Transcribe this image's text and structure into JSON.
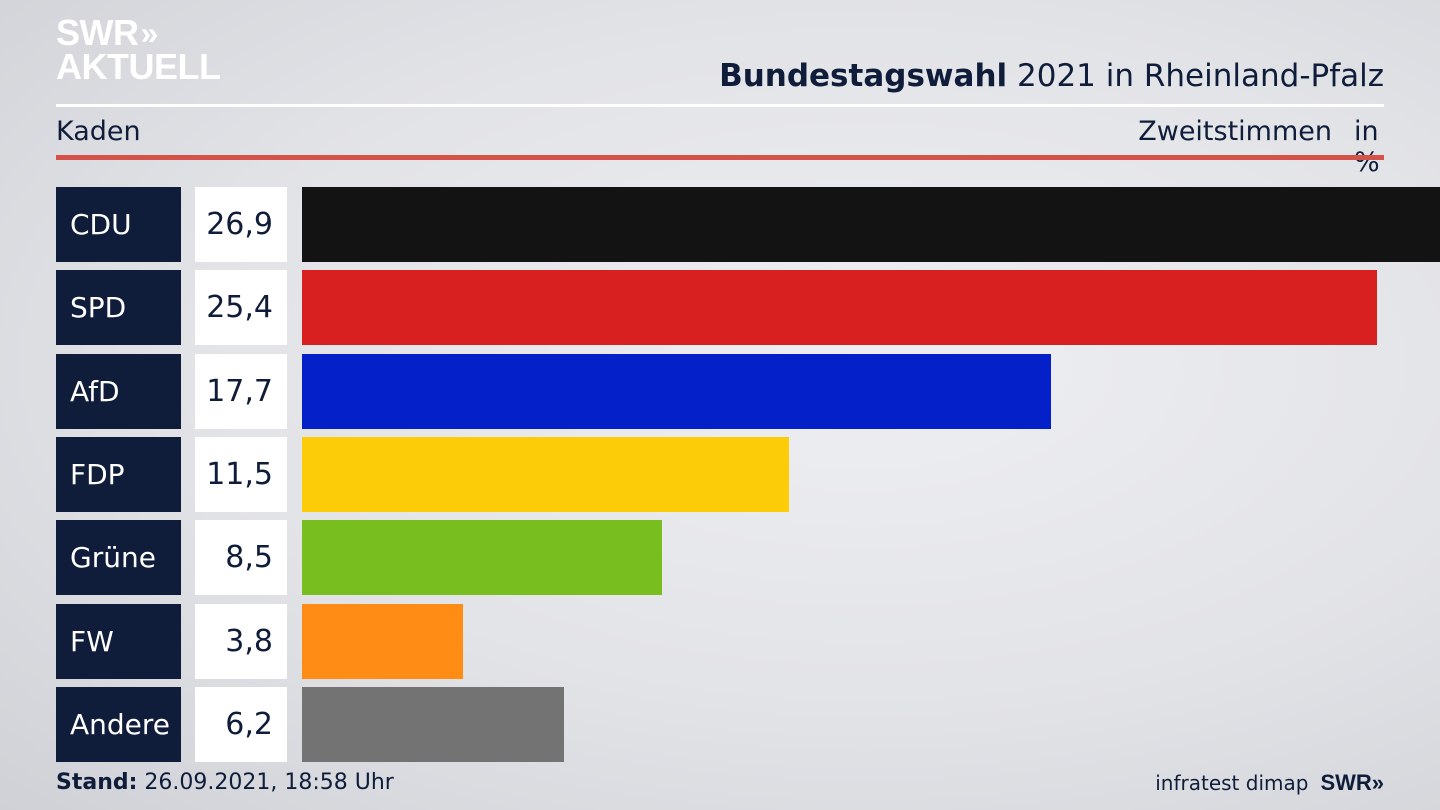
{
  "brand": {
    "swr": "SWR",
    "chev": "»",
    "aktuell": "AKTUELL"
  },
  "header": {
    "title_bold": "Bundestagswahl",
    "title_rest": " 2021 in Rheinland-Pfalz"
  },
  "subheader": {
    "region": "Kaden",
    "measure": "Zweitstimmen",
    "unit": "in %"
  },
  "footer": {
    "stand_label": "Stand:",
    "stand_value": " 26.09.2021, 18:58 Uhr",
    "source": "infratest dimap",
    "logo": "SWR»"
  },
  "chart_data": {
    "type": "bar",
    "orientation": "horizontal",
    "categories": [
      "CDU",
      "SPD",
      "AfD",
      "FDP",
      "Grüne",
      "FW",
      "Andere"
    ],
    "values": [
      26.9,
      25.4,
      17.7,
      11.5,
      8.5,
      3.8,
      6.2
    ],
    "value_labels": [
      "26,9",
      "25,4",
      "17,7",
      "11,5",
      "8,5",
      "3,8",
      "6,2"
    ],
    "colors": [
      "#131313",
      "#d82020",
      "#0421c9",
      "#fdcc08",
      "#78be1e",
      "#ff8c14",
      "#737373"
    ],
    "xlim": [
      0,
      26.9
    ]
  }
}
